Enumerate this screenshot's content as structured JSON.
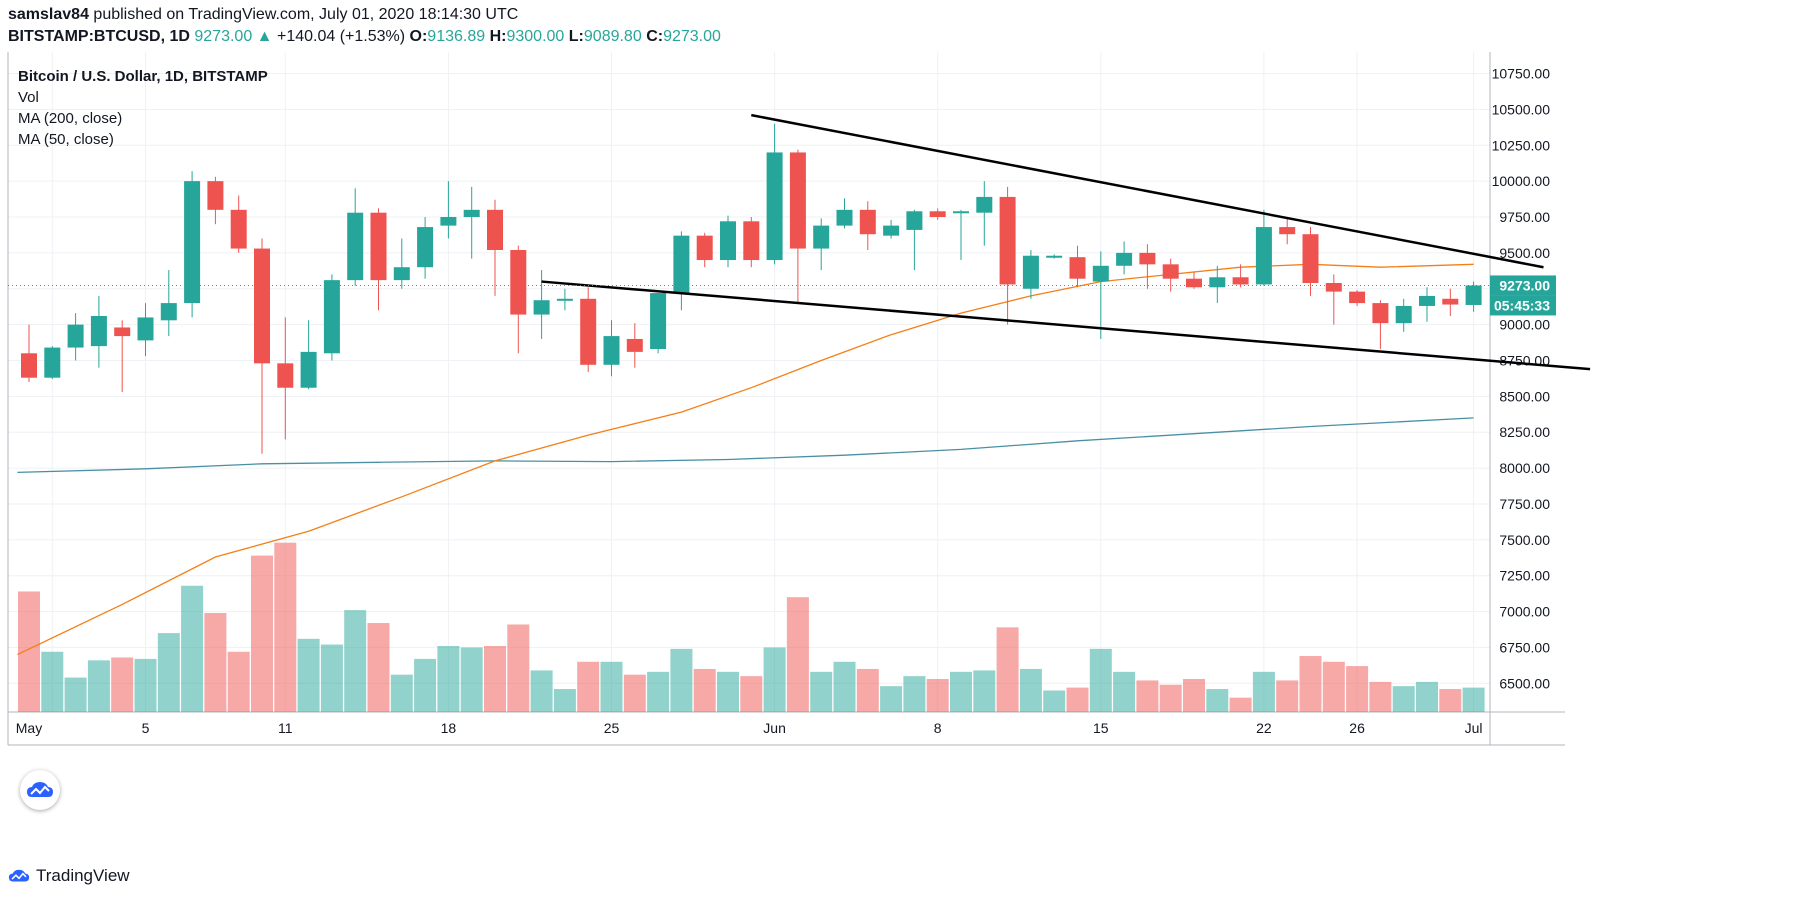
{
  "header": {
    "publisher": "samslav84",
    "published_text": "published on TradingView.com, July 01, 2020 18:14:30 UTC",
    "symbol": "BITSTAMP:BTCUSD, 1D",
    "last": "9273.00",
    "change_arrow": "▲",
    "change": "+140.04 (+1.53%)",
    "o_label": "O:",
    "o_value": "9136.89",
    "h_label": "H:",
    "h_value": "9300.00",
    "l_label": "L:",
    "l_value": "9089.80",
    "c_label": "C:",
    "c_value": "9273.00"
  },
  "legend": {
    "title": "Bitcoin / U.S. Dollar, 1D, BITSTAMP",
    "vol": "Vol",
    "ma200": "MA (200, close)",
    "ma50": "MA (50, close)"
  },
  "price_tag": "9273.00",
  "countdown_tag": "05:45:33",
  "footer": {
    "brand": "TradingView"
  },
  "colors": {
    "up": "#26a69a",
    "down": "#ef5350",
    "ma50": "#f57f17",
    "ma200": "#4a90a4"
  },
  "chart_data": {
    "type": "candlestick",
    "y_ticks": [
      "10750.00",
      "10500.00",
      "10250.00",
      "10000.00",
      "9750.00",
      "9500.00",
      "9250.00",
      "9000.00",
      "8750.00",
      "8500.00",
      "8250.00",
      "8000.00",
      "7750.00",
      "7500.00",
      "7250.00",
      "7000.00",
      "6750.00",
      "6500.00"
    ],
    "ylim": [
      6300,
      10900
    ],
    "x_ticks": [
      {
        "label": "May",
        "index": 1
      },
      {
        "label": "5",
        "index": 5
      },
      {
        "label": "11",
        "index": 11
      },
      {
        "label": "18",
        "index": 18
      },
      {
        "label": "25",
        "index": 25
      },
      {
        "label": "Jun",
        "index": 32
      },
      {
        "label": "8",
        "index": 39
      },
      {
        "label": "15",
        "index": 46
      },
      {
        "label": "22",
        "index": 53
      },
      {
        "label": "26",
        "index": 57
      },
      {
        "label": "Jul",
        "index": 62
      }
    ],
    "candles": [
      [
        8800,
        9000,
        8600,
        8630
      ],
      [
        8630,
        8850,
        8620,
        8840
      ],
      [
        8840,
        9080,
        8750,
        9000
      ],
      [
        8850,
        9200,
        8700,
        9060
      ],
      [
        8980,
        9030,
        8530,
        8920
      ],
      [
        8890,
        9150,
        8780,
        9050
      ],
      [
        9030,
        9380,
        8920,
        9150
      ],
      [
        9150,
        10070,
        9050,
        10000
      ],
      [
        10000,
        10030,
        9700,
        9800
      ],
      [
        9800,
        9900,
        9500,
        9530
      ],
      [
        9530,
        9600,
        8100,
        8730
      ],
      [
        8730,
        9050,
        8200,
        8560
      ],
      [
        8560,
        9030,
        8550,
        8810
      ],
      [
        8800,
        9350,
        8750,
        9310
      ],
      [
        9310,
        9950,
        9270,
        9780
      ],
      [
        9780,
        9810,
        9100,
        9310
      ],
      [
        9310,
        9600,
        9250,
        9400
      ],
      [
        9400,
        9750,
        9320,
        9680
      ],
      [
        9690,
        10000,
        9600,
        9750
      ],
      [
        9750,
        9960,
        9460,
        9800
      ],
      [
        9800,
        9870,
        9200,
        9520
      ],
      [
        9520,
        9550,
        8800,
        9070
      ],
      [
        9070,
        9380,
        8900,
        9170
      ],
      [
        9170,
        9250,
        9100,
        9180
      ],
      [
        9180,
        9260,
        8670,
        8720
      ],
      [
        8720,
        9030,
        8640,
        8920
      ],
      [
        8900,
        9010,
        8700,
        8810
      ],
      [
        8830,
        9220,
        8800,
        9220
      ],
      [
        9220,
        9650,
        9100,
        9620
      ],
      [
        9620,
        9640,
        9400,
        9450
      ],
      [
        9450,
        9760,
        9400,
        9720
      ],
      [
        9720,
        9750,
        9400,
        9450
      ],
      [
        9450,
        10400,
        9420,
        10200
      ],
      [
        10200,
        10220,
        9150,
        9530
      ],
      [
        9530,
        9740,
        9380,
        9690
      ],
      [
        9690,
        9880,
        9670,
        9800
      ],
      [
        9800,
        9860,
        9520,
        9630
      ],
      [
        9620,
        9730,
        9600,
        9690
      ],
      [
        9660,
        9800,
        9380,
        9790
      ],
      [
        9790,
        9810,
        9730,
        9750
      ],
      [
        9780,
        9800,
        9450,
        9790
      ],
      [
        9780,
        10000,
        9550,
        9890
      ],
      [
        9890,
        9960,
        9000,
        9280
      ],
      [
        9250,
        9520,
        9180,
        9480
      ],
      [
        9470,
        9490,
        9460,
        9480
      ],
      [
        9470,
        9550,
        9260,
        9320
      ],
      [
        9300,
        9510,
        8900,
        9410
      ],
      [
        9410,
        9580,
        9350,
        9500
      ],
      [
        9500,
        9560,
        9250,
        9420
      ],
      [
        9420,
        9460,
        9230,
        9320
      ],
      [
        9320,
        9370,
        9250,
        9260
      ],
      [
        9260,
        9410,
        9150,
        9330
      ],
      [
        9330,
        9420,
        9260,
        9280
      ],
      [
        9280,
        9800,
        9270,
        9680
      ],
      [
        9680,
        9740,
        9560,
        9630
      ],
      [
        9630,
        9680,
        9200,
        9290
      ],
      [
        9290,
        9350,
        9000,
        9230
      ],
      [
        9230,
        9240,
        9130,
        9150
      ],
      [
        9150,
        9170,
        8830,
        9010
      ],
      [
        9010,
        9180,
        8950,
        9130
      ],
      [
        9130,
        9260,
        9020,
        9200
      ],
      [
        9180,
        9250,
        9060,
        9140
      ],
      [
        9136.89,
        9300,
        9089.8,
        9273
      ]
    ],
    "volume": [
      7140,
      6720,
      6540,
      6660,
      6680,
      6670,
      6850,
      7180,
      6990,
      6720,
      7390,
      7480,
      6810,
      6770,
      7010,
      6920,
      6560,
      6670,
      6760,
      6750,
      6760,
      6910,
      6590,
      6460,
      6650,
      6650,
      6560,
      6580,
      6740,
      6600,
      6580,
      6550,
      6750,
      7100,
      6580,
      6650,
      6600,
      6480,
      6550,
      6530,
      6580,
      6590,
      6890,
      6600,
      6450,
      6470,
      6740,
      6580,
      6520,
      6490,
      6530,
      6460,
      6400,
      6580,
      6520,
      6690,
      6650,
      6620,
      6510,
      6480,
      6510,
      6460,
      6470
    ],
    "ma50_points": [
      [
        -0.5,
        6700
      ],
      [
        4,
        7050
      ],
      [
        8,
        7380
      ],
      [
        12,
        7560
      ],
      [
        16,
        7800
      ],
      [
        20,
        8050
      ],
      [
        24,
        8230
      ],
      [
        28,
        8390
      ],
      [
        31,
        8560
      ],
      [
        34,
        8750
      ],
      [
        37,
        8930
      ],
      [
        40,
        9080
      ],
      [
        43,
        9200
      ],
      [
        46,
        9300
      ],
      [
        49,
        9350
      ],
      [
        52,
        9400
      ],
      [
        55,
        9420
      ],
      [
        58,
        9400
      ],
      [
        62,
        9420
      ]
    ],
    "ma200_points": [
      [
        -0.5,
        7970
      ],
      [
        5,
        7995
      ],
      [
        10,
        8030
      ],
      [
        15,
        8040
      ],
      [
        20,
        8050
      ],
      [
        25,
        8045
      ],
      [
        30,
        8060
      ],
      [
        35,
        8090
      ],
      [
        40,
        8130
      ],
      [
        45,
        8190
      ],
      [
        50,
        8240
      ],
      [
        55,
        8290
      ],
      [
        62,
        8350
      ]
    ],
    "trendlines": [
      {
        "from": [
          31,
          10460
        ],
        "to": [
          65,
          9400
        ]
      },
      {
        "from": [
          22,
          9300
        ],
        "to": [
          67,
          8690
        ]
      }
    ]
  }
}
